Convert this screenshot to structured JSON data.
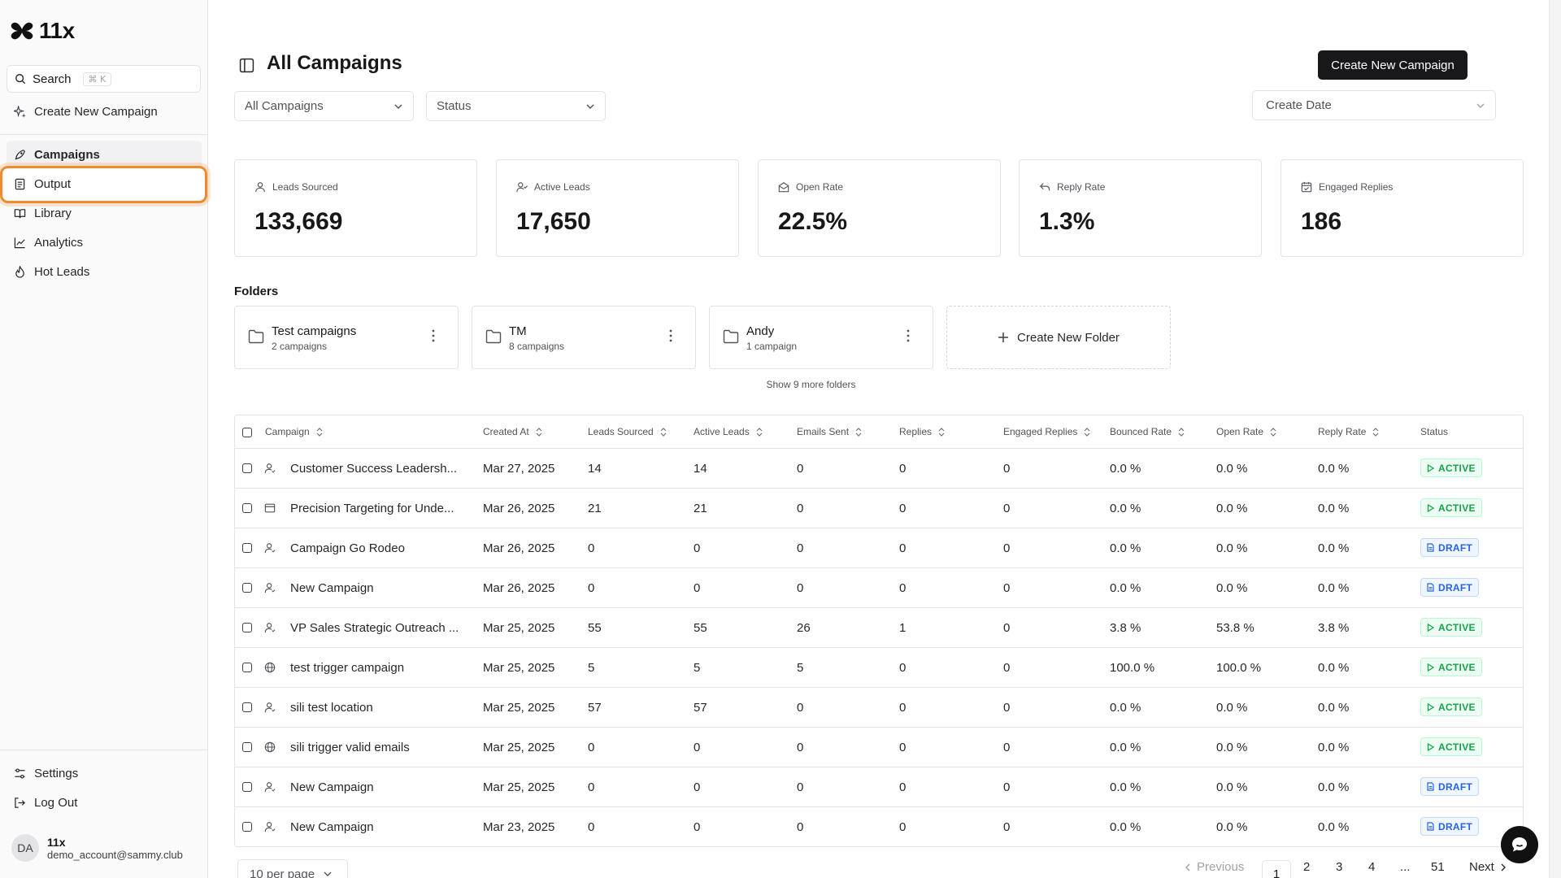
{
  "app": {
    "name": "11x"
  },
  "sidebar": {
    "search_label": "Search",
    "search_shortcut": "⌘ K",
    "create_label": "Create New Campaign",
    "items": [
      {
        "label": "Campaigns",
        "icon": "rocket-icon"
      },
      {
        "label": "Output",
        "icon": "document-icon"
      },
      {
        "label": "Library",
        "icon": "book-icon"
      },
      {
        "label": "Analytics",
        "icon": "chart-line-icon"
      },
      {
        "label": "Hot Leads",
        "icon": "flame-icon"
      }
    ],
    "settings_label": "Settings",
    "logout_label": "Log Out",
    "user": {
      "initials": "DA",
      "name": "11x",
      "email": "demo_account@sammy.club"
    }
  },
  "header": {
    "title": "All Campaigns",
    "create_button": "Create New Campaign",
    "filter_campaigns": "All Campaigns",
    "filter_status": "Status",
    "sort_date": "Create Date"
  },
  "stats": [
    {
      "label": "Leads Sourced",
      "value": "133,669",
      "icon": "user-icon"
    },
    {
      "label": "Active Leads",
      "value": "17,650",
      "icon": "user-check-icon"
    },
    {
      "label": "Open Rate",
      "value": "22.5%",
      "icon": "mail-open-icon"
    },
    {
      "label": "Reply Rate",
      "value": "1.3%",
      "icon": "reply-icon"
    },
    {
      "label": "Engaged Replies",
      "value": "186",
      "icon": "calendar-check-icon"
    }
  ],
  "folders": {
    "title": "Folders",
    "items": [
      {
        "name": "Test campaigns",
        "count": "2 campaigns"
      },
      {
        "name": "TM",
        "count": "8 campaigns"
      },
      {
        "name": "Andy",
        "count": "1 campaign"
      }
    ],
    "create_label": "Create New Folder",
    "show_more": "Show 9 more folders"
  },
  "table": {
    "columns": [
      "Campaign",
      "Created At",
      "Leads Sourced",
      "Active Leads",
      "Emails Sent",
      "Replies",
      "Engaged Replies",
      "Bounced Rate",
      "Open Rate",
      "Reply Rate",
      "Status"
    ],
    "rows": [
      {
        "icon": "user-icon",
        "name": "Customer Success Leadersh...",
        "created": "Mar 27, 2025",
        "leads": "14",
        "active": "14",
        "sent": "0",
        "replies": "0",
        "engaged": "0",
        "bounced": "0.0 %",
        "open": "0.0 %",
        "reply": "0.0 %",
        "status": "ACTIVE"
      },
      {
        "icon": "browser-icon",
        "name": "Precision Targeting for Unde...",
        "created": "Mar 26, 2025",
        "leads": "21",
        "active": "21",
        "sent": "0",
        "replies": "0",
        "engaged": "0",
        "bounced": "0.0 %",
        "open": "0.0 %",
        "reply": "0.0 %",
        "status": "ACTIVE"
      },
      {
        "icon": "user-icon",
        "name": "Campaign Go Rodeo",
        "created": "Mar 26, 2025",
        "leads": "0",
        "active": "0",
        "sent": "0",
        "replies": "0",
        "engaged": "0",
        "bounced": "0.0 %",
        "open": "0.0 %",
        "reply": "0.0 %",
        "status": "DRAFT"
      },
      {
        "icon": "user-icon",
        "name": "New Campaign",
        "created": "Mar 26, 2025",
        "leads": "0",
        "active": "0",
        "sent": "0",
        "replies": "0",
        "engaged": "0",
        "bounced": "0.0 %",
        "open": "0.0 %",
        "reply": "0.0 %",
        "status": "DRAFT"
      },
      {
        "icon": "user-icon",
        "name": "VP Sales Strategic Outreach ...",
        "created": "Mar 25, 2025",
        "leads": "55",
        "active": "55",
        "sent": "26",
        "replies": "1",
        "engaged": "0",
        "bounced": "3.8 %",
        "open": "53.8 %",
        "reply": "3.8 %",
        "status": "ACTIVE"
      },
      {
        "icon": "globe-icon",
        "name": "test trigger campaign",
        "created": "Mar 25, 2025",
        "leads": "5",
        "active": "5",
        "sent": "5",
        "replies": "0",
        "engaged": "0",
        "bounced": "100.0 %",
        "open": "100.0 %",
        "reply": "0.0 %",
        "status": "ACTIVE"
      },
      {
        "icon": "user-icon",
        "name": "sili test location",
        "created": "Mar 25, 2025",
        "leads": "57",
        "active": "57",
        "sent": "0",
        "replies": "0",
        "engaged": "0",
        "bounced": "0.0 %",
        "open": "0.0 %",
        "reply": "0.0 %",
        "status": "ACTIVE"
      },
      {
        "icon": "globe-icon",
        "name": "sili trigger valid emails",
        "created": "Mar 25, 2025",
        "leads": "0",
        "active": "0",
        "sent": "0",
        "replies": "0",
        "engaged": "0",
        "bounced": "0.0 %",
        "open": "0.0 %",
        "reply": "0.0 %",
        "status": "ACTIVE"
      },
      {
        "icon": "user-icon",
        "name": "New Campaign",
        "created": "Mar 25, 2025",
        "leads": "0",
        "active": "0",
        "sent": "0",
        "replies": "0",
        "engaged": "0",
        "bounced": "0.0 %",
        "open": "0.0 %",
        "reply": "0.0 %",
        "status": "DRAFT"
      },
      {
        "icon": "user-icon",
        "name": "New Campaign",
        "created": "Mar 23, 2025",
        "leads": "0",
        "active": "0",
        "sent": "0",
        "replies": "0",
        "engaged": "0",
        "bounced": "0.0 %",
        "open": "0.0 %",
        "reply": "0.0 %",
        "status": "DRAFT"
      }
    ]
  },
  "pagination": {
    "per_page": "10 per page",
    "previous": "Previous",
    "pages": [
      "1",
      "2",
      "3",
      "4"
    ],
    "ellipsis": "...",
    "last": "51",
    "next": "Next",
    "current": "1"
  },
  "colors": {
    "accent": "#18181b",
    "highlight": "#f08a2c",
    "active": "#16a34a",
    "draft": "#2563eb"
  }
}
